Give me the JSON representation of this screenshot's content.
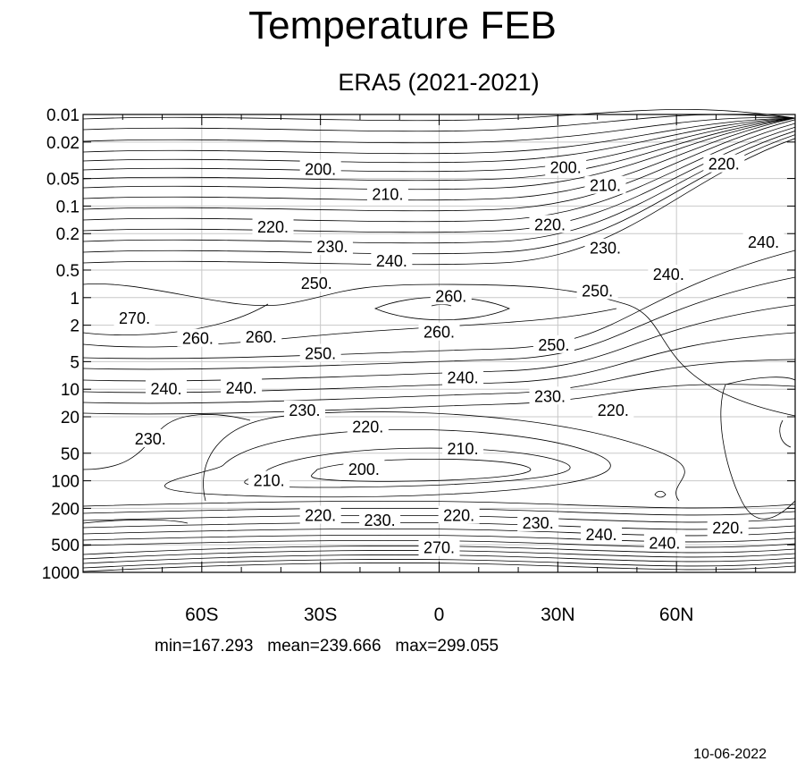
{
  "header": {
    "title": "Temperature FEB",
    "subtitle": "ERA5 (2021-2021)"
  },
  "stats": {
    "min": "min=167.293",
    "mean": "mean=239.666",
    "max": "max=299.055"
  },
  "footer": {
    "date": "10-06-2022"
  },
  "chart_data": {
    "type": "contour",
    "title": "Temperature FEB",
    "subtitle": "ERA5 (2021-2021)",
    "x_axis": {
      "label": "",
      "range": [
        -90,
        90
      ],
      "ticks": [
        {
          "value": -60,
          "label": "60S"
        },
        {
          "value": -30,
          "label": "30S"
        },
        {
          "value": 0,
          "label": "0"
        },
        {
          "value": 30,
          "label": "30N"
        },
        {
          "value": 60,
          "label": "60N"
        }
      ]
    },
    "y_axis": {
      "label": "",
      "scale": "log-pressure (inverted)",
      "range": [
        1000,
        0.01
      ],
      "ticks": [
        {
          "value": 0.01,
          "label": "0.01"
        },
        {
          "value": 0.02,
          "label": "0.02"
        },
        {
          "value": 0.05,
          "label": "0.05"
        },
        {
          "value": 0.1,
          "label": "0.1"
        },
        {
          "value": 0.2,
          "label": "0.2"
        },
        {
          "value": 0.5,
          "label": "0.5"
        },
        {
          "value": 1,
          "label": "1"
        },
        {
          "value": 2,
          "label": "2"
        },
        {
          "value": 5,
          "label": "5"
        },
        {
          "value": 10,
          "label": "10"
        },
        {
          "value": 20,
          "label": "20"
        },
        {
          "value": 50,
          "label": "50"
        },
        {
          "value": 100,
          "label": "100"
        },
        {
          "value": 200,
          "label": "200"
        },
        {
          "value": 500,
          "label": "500"
        },
        {
          "value": 1000,
          "label": "1000"
        }
      ]
    },
    "grid": true,
    "contour_interval": 5,
    "contour_labels": [
      {
        "text": "200.",
        "lat": -30,
        "p": 0.04
      },
      {
        "text": "200.",
        "lat": 32,
        "p": 0.038
      },
      {
        "text": "210.",
        "lat": 42,
        "p": 0.06
      },
      {
        "text": "220.",
        "lat": 72,
        "p": 0.035
      },
      {
        "text": "210.",
        "lat": -13,
        "p": 0.075
      },
      {
        "text": "220.",
        "lat": -42,
        "p": 0.17
      },
      {
        "text": "220.",
        "lat": 28,
        "p": 0.16
      },
      {
        "text": "230.",
        "lat": -27,
        "p": 0.28
      },
      {
        "text": "230.",
        "lat": 42,
        "p": 0.29
      },
      {
        "text": "240.",
        "lat": 82,
        "p": 0.25
      },
      {
        "text": "240.",
        "lat": -12,
        "p": 0.4
      },
      {
        "text": "240.",
        "lat": 58,
        "p": 0.56
      },
      {
        "text": "250.",
        "lat": -31,
        "p": 0.7
      },
      {
        "text": "250.",
        "lat": 40,
        "p": 0.85
      },
      {
        "text": "260.",
        "lat": 3,
        "p": 0.97
      },
      {
        "text": "270.",
        "lat": -77,
        "p": 1.68
      },
      {
        "text": "260.",
        "lat": -61,
        "p": 2.8
      },
      {
        "text": "260.",
        "lat": -45,
        "p": 2.7
      },
      {
        "text": "260.",
        "lat": 0,
        "p": 2.4
      },
      {
        "text": "250.",
        "lat": -30,
        "p": 4.1
      },
      {
        "text": "250.",
        "lat": 29,
        "p": 3.3
      },
      {
        "text": "240.",
        "lat": 6,
        "p": 7.5
      },
      {
        "text": "240.",
        "lat": -69,
        "p": 10
      },
      {
        "text": "240.",
        "lat": -50,
        "p": 9.7
      },
      {
        "text": "230.",
        "lat": 28,
        "p": 12
      },
      {
        "text": "230.",
        "lat": -34,
        "p": 17
      },
      {
        "text": "220.",
        "lat": 44,
        "p": 17
      },
      {
        "text": "220.",
        "lat": -18,
        "p": 26
      },
      {
        "text": "230.",
        "lat": -73,
        "p": 35
      },
      {
        "text": "210.",
        "lat": 6,
        "p": 45
      },
      {
        "text": "200.",
        "lat": -19,
        "p": 75
      },
      {
        "text": "210.",
        "lat": -43,
        "p": 100
      },
      {
        "text": "220.",
        "lat": -30,
        "p": 240
      },
      {
        "text": "230.",
        "lat": -15,
        "p": 270
      },
      {
        "text": "220.",
        "lat": 5,
        "p": 240
      },
      {
        "text": "230.",
        "lat": 25,
        "p": 290
      },
      {
        "text": "240.",
        "lat": 41,
        "p": 390
      },
      {
        "text": "240.",
        "lat": 57,
        "p": 480
      },
      {
        "text": "220.",
        "lat": 73,
        "p": 330
      },
      {
        "text": "270.",
        "lat": 0,
        "p": 540
      }
    ]
  }
}
